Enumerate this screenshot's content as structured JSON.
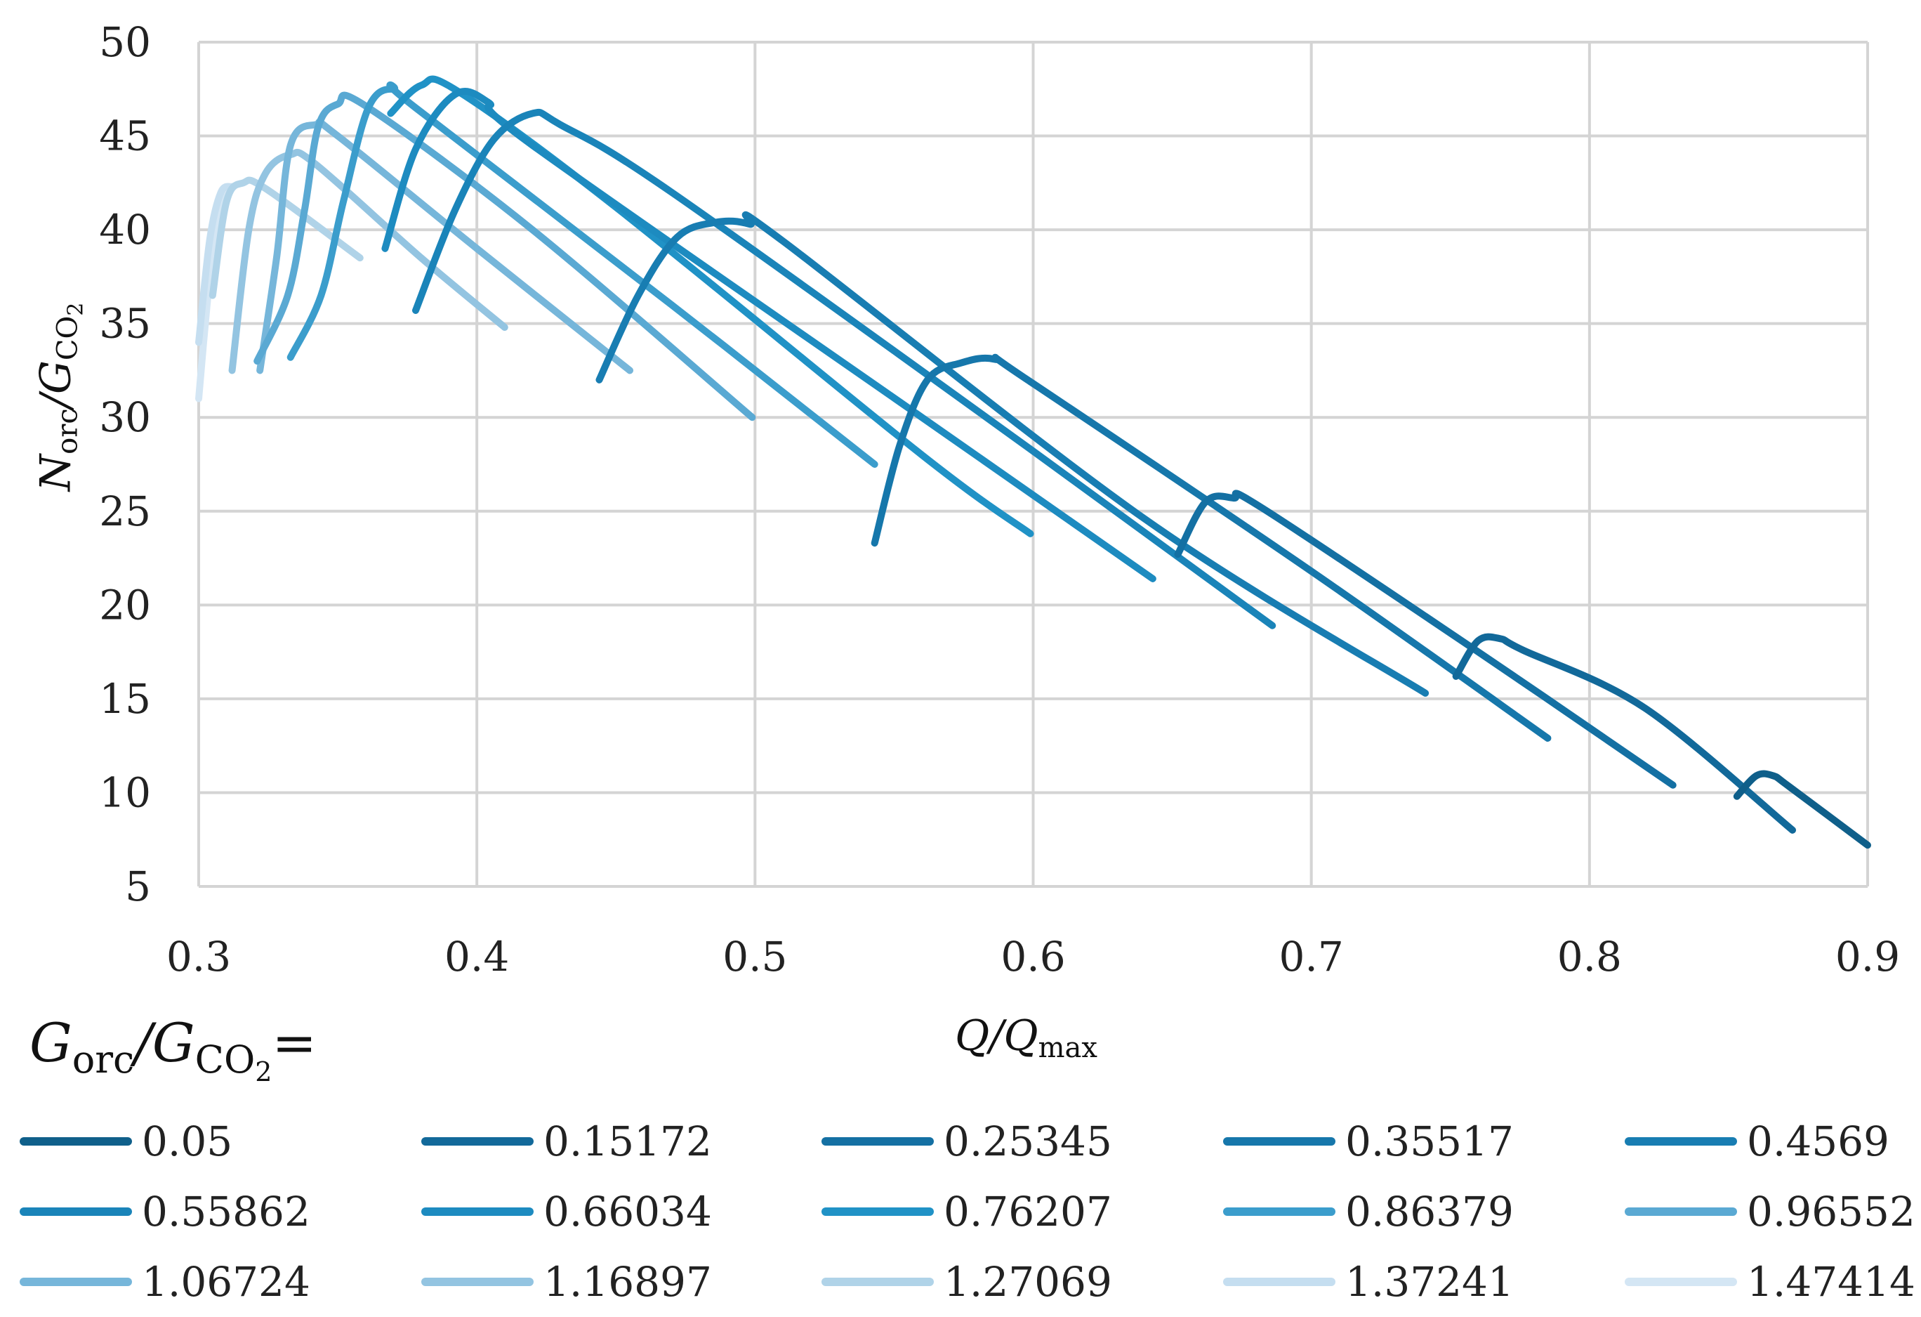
{
  "chart_data": {
    "type": "line",
    "title": "",
    "xlabel": "Q/Q_max",
    "ylabel": "N_orc/G_CO2",
    "xlim": [
      0.3,
      0.9
    ],
    "ylim": [
      5,
      50
    ],
    "xticks": [
      "0.3",
      "0.4",
      "0.5",
      "0.6",
      "0.7",
      "0.8",
      "0.9"
    ],
    "yticks": [
      "5",
      "10",
      "15",
      "20",
      "25",
      "30",
      "35",
      "40",
      "45",
      "50"
    ],
    "grid": true,
    "legend_title": "G_orc/G_CO2=",
    "legend_placement": "bottom",
    "series": [
      {
        "name": "0.05",
        "color": "#0f5f8a",
        "x": [
          0.853,
          0.86,
          0.866,
          0.872,
          0.9
        ],
        "y": [
          9.8,
          10.9,
          10.9,
          10.3,
          7.2
        ]
      },
      {
        "name": "0.15172",
        "color": "#12699a",
        "x": [
          0.752,
          0.76,
          0.768,
          0.776,
          0.82,
          0.873
        ],
        "y": [
          16.2,
          18.1,
          18.2,
          17.6,
          14.5,
          8.0
        ]
      },
      {
        "name": "0.25345",
        "color": "#1470a3",
        "x": [
          0.652,
          0.662,
          0.672,
          0.682,
          0.76,
          0.83
        ],
        "y": [
          22.7,
          25.5,
          25.7,
          25.2,
          17.5,
          10.4
        ]
      },
      {
        "name": "0.35517",
        "color": "#1677ab",
        "x": [
          0.543,
          0.552,
          0.562,
          0.574,
          0.586,
          0.598,
          0.7,
          0.785
        ],
        "y": [
          23.3,
          28.5,
          32.0,
          32.9,
          33.1,
          32.0,
          21.8,
          12.9
        ]
      },
      {
        "name": "0.4569",
        "color": "#187db2",
        "x": [
          0.444,
          0.458,
          0.472,
          0.486,
          0.498,
          0.51,
          0.64,
          0.741
        ],
        "y": [
          32.0,
          36.5,
          39.6,
          40.4,
          40.3,
          39.4,
          24.6,
          15.3
        ]
      },
      {
        "name": "0.55862",
        "color": "#1a84b9",
        "x": [
          0.378,
          0.392,
          0.406,
          0.42,
          0.43,
          0.47,
          0.6,
          0.686
        ],
        "y": [
          35.7,
          41.0,
          44.8,
          46.2,
          45.6,
          42.0,
          28.2,
          18.9
        ]
      },
      {
        "name": "0.66034",
        "color": "#1d8bc0",
        "x": [
          0.367,
          0.378,
          0.392,
          0.404,
          0.42,
          0.56,
          0.643
        ],
        "y": [
          39.0,
          44.3,
          47.2,
          46.8,
          44.5,
          30.0,
          21.4
        ]
      },
      {
        "name": "0.76207",
        "color": "#2092c6",
        "x": [
          0.369,
          0.38,
          0.393,
          0.45,
          0.56,
          0.599
        ],
        "y": [
          46.2,
          47.7,
          47.4,
          41.2,
          28.0,
          23.8
        ]
      },
      {
        "name": "0.86379",
        "color": "#3b9dcc",
        "x": [
          0.333,
          0.344,
          0.352,
          0.361,
          0.37,
          0.378,
          0.47,
          0.543
        ],
        "y": [
          33.2,
          36.5,
          41.5,
          46.5,
          47.5,
          46.5,
          36.0,
          27.5
        ]
      },
      {
        "name": "0.96552",
        "color": "#5aa9d3",
        "x": [
          0.321,
          0.332,
          0.338,
          0.343,
          0.35,
          0.36,
          0.42,
          0.499
        ],
        "y": [
          33.0,
          36.5,
          41.0,
          45.5,
          46.7,
          46.6,
          40.0,
          30.0
        ]
      },
      {
        "name": "1.06724",
        "color": "#76b6da",
        "x": [
          0.322,
          0.328,
          0.333,
          0.342,
          0.35,
          0.4,
          0.455
        ],
        "y": [
          32.5,
          38.5,
          44.5,
          45.6,
          45.0,
          39.0,
          32.5
        ]
      },
      {
        "name": "1.16897",
        "color": "#93c4e1",
        "x": [
          0.312,
          0.318,
          0.324,
          0.333,
          0.342,
          0.38,
          0.41
        ],
        "y": [
          32.5,
          40.0,
          43.0,
          44.0,
          43.5,
          38.5,
          34.8
        ]
      },
      {
        "name": "1.27069",
        "color": "#b0d3e8",
        "x": [
          0.305,
          0.31,
          0.316,
          0.324,
          0.358
        ],
        "y": [
          36.5,
          41.5,
          42.5,
          42.2,
          38.5
        ]
      },
      {
        "name": "1.37241",
        "color": "#c5def0",
        "x": [
          0.3,
          0.304,
          0.308,
          0.312
        ],
        "y": [
          34.0,
          39.5,
          42.0,
          42.3
        ]
      },
      {
        "name": "1.47414",
        "color": "#d4e6f4",
        "x": [
          0.3,
          0.303,
          0.306,
          0.309
        ],
        "y": [
          31.0,
          36.0,
          40.0,
          42.0
        ]
      }
    ]
  }
}
